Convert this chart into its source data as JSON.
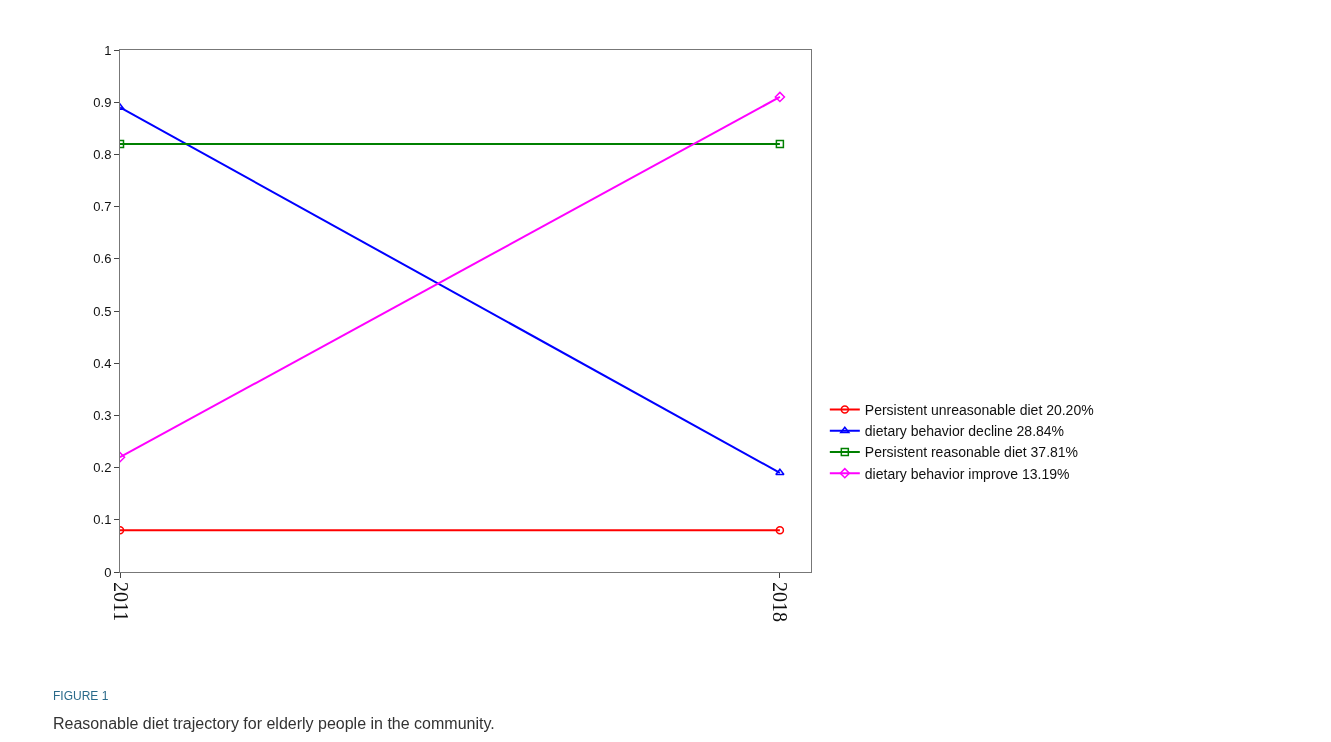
{
  "chart_data": {
    "type": "line",
    "x": [
      2011,
      2018
    ],
    "xlim": [
      2011,
      2018.33
    ],
    "xticks": [
      2011,
      2018
    ],
    "ylim": [
      0,
      1
    ],
    "yticks": [
      0,
      0.1,
      0.2,
      0.3,
      0.4,
      0.5,
      0.6,
      0.7,
      0.8,
      0.9,
      1
    ],
    "legend": "right",
    "line_style": "solid",
    "series": [
      {
        "name": "Persistent unreasonable diet 20.20%",
        "color": "#ff0000",
        "marker": "circle",
        "values": [
          0.08,
          0.08
        ]
      },
      {
        "name": "dietary behavior decline 28.84%",
        "color": "#0000ff",
        "marker": "triangle",
        "values": [
          0.89,
          0.19
        ]
      },
      {
        "name": "Persistent reasonable diet 37.81%",
        "color": "#008000",
        "marker": "square",
        "values": [
          0.82,
          0.82
        ]
      },
      {
        "name": "dietary behavior improve 13.19%",
        "color": "#ff00ff",
        "marker": "diamond",
        "values": [
          0.22,
          0.91
        ]
      }
    ],
    "annotations": [
      "FIGURE 1",
      "Reasonable diet trajectory for elderly people in the community."
    ]
  }
}
